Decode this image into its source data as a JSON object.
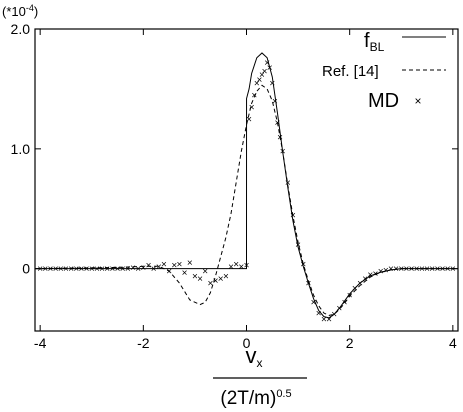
{
  "chart_data": {
    "type": "line",
    "multiplier_label": "(*10",
    "multiplier_exp": "-4",
    "multiplier_close": ")",
    "xlim": [
      -4.1,
      4.1
    ],
    "ylim": [
      -0.52,
      2.0
    ],
    "x_ticks": [
      -4,
      -2,
      0,
      2,
      4
    ],
    "x_tick_labels": [
      "-4",
      "-2",
      "0",
      "2",
      "4"
    ],
    "y_ticks": [
      0,
      1.0,
      2.0
    ],
    "y_tick_labels": [
      "0",
      "1.0",
      "2.0"
    ],
    "xlabel_numerator": "v",
    "xlabel_numerator_sub": "x",
    "xlabel_denominator": "(2T/m)",
    "xlabel_denominator_sup": "0.5",
    "legend": [
      {
        "label": "f",
        "sub": "BL",
        "style": "solid"
      },
      {
        "label": "Ref. [14]",
        "sub": "",
        "style": "dashed"
      },
      {
        "label": "MD",
        "sub": "",
        "style": "marker-x"
      }
    ],
    "series": [
      {
        "name": "fBL",
        "style": "solid",
        "x": [
          -4.1,
          -2.0,
          -1.0,
          -0.05,
          0.0,
          0.001,
          0.05,
          0.1,
          0.2,
          0.3,
          0.4,
          0.5,
          0.6,
          0.7,
          0.8,
          0.9,
          1.0,
          1.1,
          1.2,
          1.3,
          1.4,
          1.5,
          1.6,
          1.7,
          1.8,
          1.9,
          2.0,
          2.2,
          2.4,
          2.6,
          2.8,
          3.0,
          3.5,
          4.1
        ],
        "y": [
          0,
          0,
          0,
          0,
          0,
          1.42,
          1.5,
          1.63,
          1.76,
          1.8,
          1.76,
          1.6,
          1.3,
          0.98,
          0.68,
          0.4,
          0.18,
          0.02,
          -0.12,
          -0.25,
          -0.35,
          -0.4,
          -0.41,
          -0.38,
          -0.33,
          -0.27,
          -0.21,
          -0.12,
          -0.06,
          -0.03,
          -0.01,
          0,
          0,
          0
        ]
      },
      {
        "name": "Ref. [14]",
        "style": "dashed",
        "x": [
          -4.1,
          -2.5,
          -2.0,
          -1.7,
          -1.5,
          -1.3,
          -1.1,
          -0.9,
          -0.8,
          -0.7,
          -0.6,
          -0.5,
          -0.4,
          -0.3,
          -0.2,
          -0.1,
          0.0,
          0.1,
          0.2,
          0.3,
          0.4,
          0.5,
          0.6,
          0.7,
          0.8,
          0.9,
          1.0,
          1.1,
          1.2,
          1.3,
          1.4,
          1.5,
          1.6,
          1.7,
          1.8,
          1.9,
          2.0,
          2.2,
          2.4,
          2.6,
          2.8,
          3.0,
          3.5,
          4.1
        ],
        "y": [
          0,
          0.01,
          0.02,
          0.02,
          -0.02,
          -0.12,
          -0.26,
          -0.3,
          -0.28,
          -0.2,
          -0.06,
          0.1,
          0.26,
          0.46,
          0.72,
          0.98,
          1.2,
          1.38,
          1.48,
          1.53,
          1.5,
          1.4,
          1.22,
          0.98,
          0.7,
          0.44,
          0.22,
          0.04,
          -0.1,
          -0.22,
          -0.31,
          -0.37,
          -0.39,
          -0.38,
          -0.34,
          -0.29,
          -0.23,
          -0.14,
          -0.07,
          -0.03,
          -0.01,
          0,
          0,
          0
        ]
      },
      {
        "name": "MD",
        "style": "marker-x",
        "x": [
          -4.0,
          -3.9,
          -3.8,
          -3.7,
          -3.6,
          -3.5,
          -3.4,
          -3.3,
          -3.2,
          -3.1,
          -3.0,
          -2.9,
          -2.8,
          -2.7,
          -2.6,
          -2.5,
          -2.4,
          -2.3,
          -2.2,
          -2.1,
          -2.0,
          -1.9,
          -1.8,
          -1.7,
          -1.6,
          -1.5,
          -1.4,
          -1.3,
          -1.2,
          -1.1,
          -1.0,
          -0.9,
          -0.8,
          -0.7,
          -0.6,
          -0.5,
          -0.4,
          -0.3,
          -0.2,
          -0.1,
          0.0,
          0.05,
          0.1,
          0.15,
          0.2,
          0.25,
          0.3,
          0.35,
          0.4,
          0.45,
          0.5,
          0.55,
          0.6,
          0.65,
          0.7,
          0.8,
          0.9,
          1.0,
          1.1,
          1.2,
          1.3,
          1.4,
          1.5,
          1.6,
          1.7,
          1.8,
          1.9,
          2.0,
          2.1,
          2.2,
          2.3,
          2.4,
          2.5,
          2.6,
          2.7,
          2.8,
          2.9,
          3.0,
          3.1,
          3.2,
          3.3,
          3.4,
          3.5,
          3.6,
          3.7,
          3.8,
          3.9,
          4.0
        ],
        "y": [
          0,
          0,
          0,
          0,
          0,
          0,
          0,
          0,
          0,
          0,
          0,
          0,
          0,
          0,
          0,
          0,
          0,
          0,
          0.01,
          0.0,
          0.01,
          0.03,
          0.0,
          0.02,
          0.04,
          -0.02,
          0.03,
          0.04,
          -0.03,
          0.05,
          -0.06,
          -0.08,
          -0.02,
          -0.12,
          -0.1,
          -0.08,
          -0.06,
          0.02,
          0.04,
          0.02,
          0.03,
          1.25,
          1.35,
          1.45,
          1.55,
          1.58,
          1.62,
          1.65,
          1.72,
          1.68,
          1.55,
          1.4,
          1.22,
          1.1,
          0.98,
          0.72,
          0.45,
          0.2,
          0.04,
          -0.12,
          -0.28,
          -0.37,
          -0.42,
          -0.42,
          -0.38,
          -0.33,
          -0.28,
          -0.22,
          -0.16,
          -0.12,
          -0.08,
          -0.05,
          -0.04,
          -0.02,
          -0.01,
          0,
          0,
          0,
          0,
          0,
          0,
          0,
          0,
          0,
          0,
          0,
          0,
          0
        ]
      }
    ]
  }
}
